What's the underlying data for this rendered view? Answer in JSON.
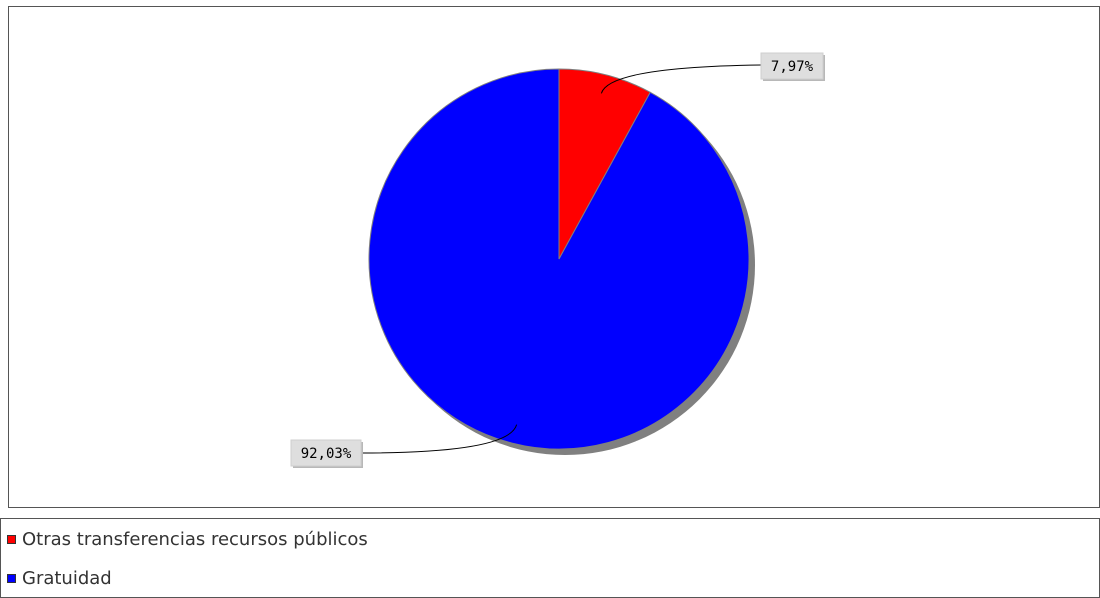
{
  "chart_data": {
    "type": "pie",
    "title": "",
    "slices": [
      {
        "name": "Otras transferencias recursos públicos",
        "value": 7.97,
        "label": "7,97%",
        "color": "#ff0000"
      },
      {
        "name": "Gratuidad",
        "value": 92.03,
        "label": "92,03%",
        "color": "#0000ff"
      }
    ],
    "legend_position": "bottom"
  }
}
